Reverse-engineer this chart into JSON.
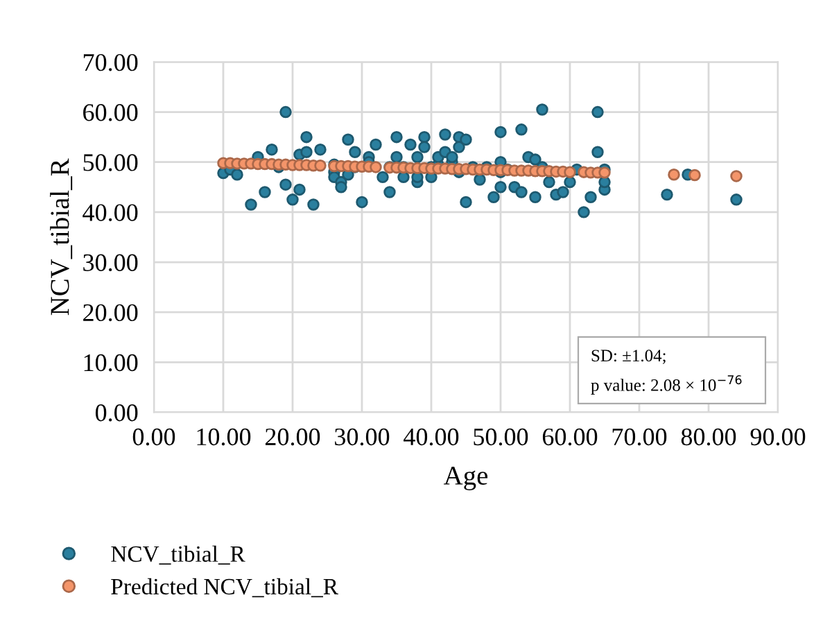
{
  "chart_data": {
    "type": "scatter",
    "xlabel": "Age",
    "ylabel": "NCV_tibial_R",
    "xlim": [
      0,
      90
    ],
    "ylim": [
      0,
      70
    ],
    "xticks": [
      {
        "value": 0,
        "label": "0.00"
      },
      {
        "value": 10,
        "label": "10.00"
      },
      {
        "value": 20,
        "label": "20.00"
      },
      {
        "value": 30,
        "label": "30.00"
      },
      {
        "value": 40,
        "label": "40.00"
      },
      {
        "value": 50,
        "label": "50.00"
      },
      {
        "value": 60,
        "label": "60.00"
      },
      {
        "value": 70,
        "label": "70.00"
      },
      {
        "value": 80,
        "label": "80.00"
      },
      {
        "value": 90,
        "label": "90.00"
      }
    ],
    "yticks": [
      {
        "value": 0,
        "label": "0.00"
      },
      {
        "value": 10,
        "label": "10.00"
      },
      {
        "value": 20,
        "label": "20.00"
      },
      {
        "value": 30,
        "label": "30.00"
      },
      {
        "value": 40,
        "label": "40.00"
      },
      {
        "value": 50,
        "label": "50.00"
      },
      {
        "value": 60,
        "label": "60.00"
      },
      {
        "value": 70,
        "label": "70.00"
      }
    ],
    "grid": true,
    "legend": "bottom",
    "marker": "circle",
    "annotations": [
      "SD: ±1.04;",
      "p value: 2.08 × 10$^{−76}$"
    ],
    "series": [
      {
        "name": "NCV_tibial_R",
        "color": "#2a7f9e",
        "x": [
          10,
          11,
          12,
          14,
          15,
          16,
          17,
          18,
          19,
          19,
          20,
          21,
          21,
          22,
          22,
          23,
          24,
          26,
          26,
          26,
          27,
          27,
          28,
          28,
          29,
          29,
          30,
          31,
          31,
          32,
          33,
          34,
          34,
          35,
          35,
          36,
          36,
          37,
          38,
          38,
          38,
          39,
          39,
          40,
          40,
          41,
          41,
          42,
          42,
          43,
          43,
          44,
          44,
          44,
          45,
          45,
          46,
          47,
          48,
          49,
          50,
          50,
          50,
          50,
          51,
          52,
          53,
          53,
          54,
          55,
          55,
          56,
          56,
          57,
          58,
          59,
          60,
          61,
          62,
          63,
          64,
          64,
          65,
          65,
          65,
          74,
          77,
          84
        ],
        "values": [
          47.8,
          48.5,
          47.5,
          41.5,
          51,
          44,
          52.5,
          49,
          60,
          45.5,
          42.5,
          44.5,
          51.5,
          55,
          52,
          41.5,
          52.5,
          49.5,
          48,
          47,
          46,
          45,
          54.5,
          47.5,
          52,
          49,
          42,
          51,
          50,
          53.5,
          47,
          44,
          49,
          55,
          51,
          49,
          47,
          53.5,
          46,
          47,
          51,
          55,
          53,
          49,
          47,
          49.5,
          51,
          52,
          55.5,
          50,
          51,
          55,
          53,
          48,
          42,
          54.5,
          49,
          46.5,
          49,
          43,
          48,
          56,
          45,
          50,
          48.5,
          45,
          44,
          56.5,
          51,
          43,
          50.5,
          60.5,
          49,
          46,
          43.5,
          44,
          46,
          48.5,
          40,
          43,
          52,
          60,
          44.5,
          46,
          48.5,
          43.5,
          47.5,
          42.5
        ]
      },
      {
        "name": "Predicted NCV_tibial_R",
        "color": "#f4956a",
        "x": [
          10,
          11,
          12,
          13,
          14,
          15,
          16,
          17,
          18,
          19,
          20,
          21,
          22,
          23,
          24,
          26,
          27,
          28,
          29,
          30,
          31,
          32,
          34,
          35,
          36,
          37,
          38,
          39,
          40,
          41,
          42,
          43,
          44,
          45,
          46,
          47,
          48,
          49,
          50,
          51,
          52,
          53,
          54,
          55,
          56,
          57,
          58,
          59,
          60,
          62,
          63,
          64,
          65,
          75,
          78,
          84
        ],
        "values": [
          49.8,
          49.8,
          49.7,
          49.7,
          49.7,
          49.6,
          49.6,
          49.6,
          49.5,
          49.5,
          49.4,
          49.4,
          49.4,
          49.3,
          49.3,
          49.2,
          49.2,
          49.2,
          49.1,
          49.1,
          49.1,
          49.0,
          48.9,
          48.9,
          48.9,
          48.8,
          48.8,
          48.8,
          48.7,
          48.7,
          48.7,
          48.6,
          48.6,
          48.6,
          48.5,
          48.5,
          48.5,
          48.4,
          48.4,
          48.4,
          48.3,
          48.3,
          48.3,
          48.2,
          48.2,
          48.2,
          48.1,
          48.1,
          48.0,
          48.0,
          47.9,
          47.9,
          47.9,
          47.5,
          47.4,
          47.2
        ]
      }
    ]
  }
}
